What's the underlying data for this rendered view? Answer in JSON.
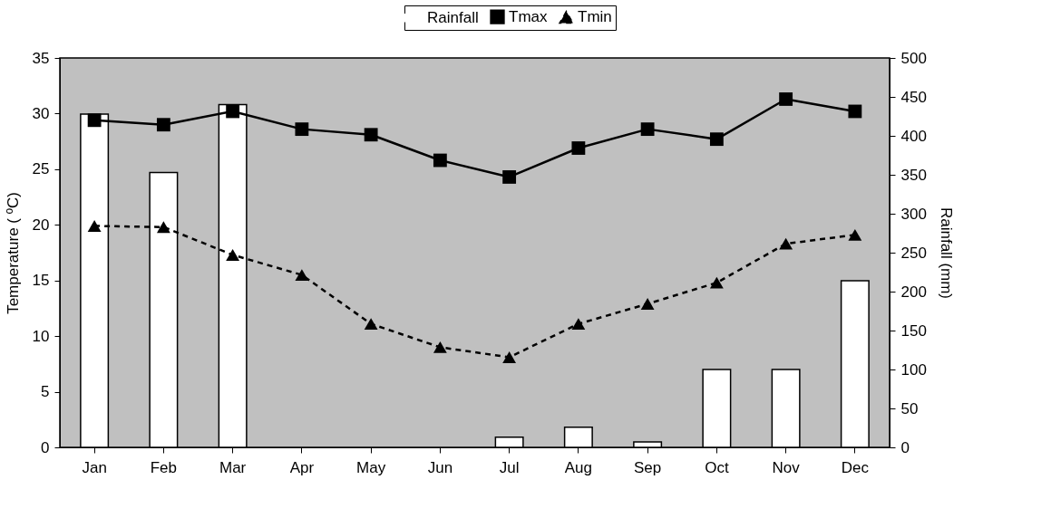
{
  "chart_data": {
    "type": "line",
    "categories": [
      "Jan",
      "Feb",
      "Mar",
      "Apr",
      "May",
      "Jun",
      "Jul",
      "Aug",
      "Sep",
      "Oct",
      "Nov",
      "Dec"
    ],
    "ylabel": "Temperature ( ºC)",
    "y2label": "Rainfall (mm)",
    "ylim": [
      0,
      35
    ],
    "yticks": [
      0,
      5,
      10,
      15,
      20,
      25,
      30,
      35
    ],
    "y2lim": [
      0,
      500
    ],
    "y2ticks": [
      0,
      50,
      100,
      150,
      200,
      250,
      300,
      350,
      400,
      450,
      500
    ],
    "legend": "top",
    "grid": false,
    "series": [
      {
        "name": "Rainfall",
        "type": "bar",
        "axis": "y2",
        "color": "#ffffff",
        "values": [
          428,
          353,
          440,
          null,
          null,
          null,
          13,
          26,
          7,
          100,
          100,
          214
        ]
      },
      {
        "name": "Tmax",
        "color": "#000000",
        "marker": "square",
        "line_style": "solid",
        "values": [
          29.4,
          29.0,
          30.2,
          28.6,
          28.1,
          25.8,
          24.3,
          26.9,
          28.6,
          27.7,
          31.3,
          30.2
        ]
      },
      {
        "name": "Tmin",
        "color": "#000000",
        "marker": "triangle",
        "line_style": "dashed",
        "values": [
          19.9,
          19.8,
          17.3,
          15.5,
          11.1,
          9.0,
          8.1,
          11.1,
          12.9,
          14.8,
          18.3,
          19.1
        ]
      }
    ]
  }
}
